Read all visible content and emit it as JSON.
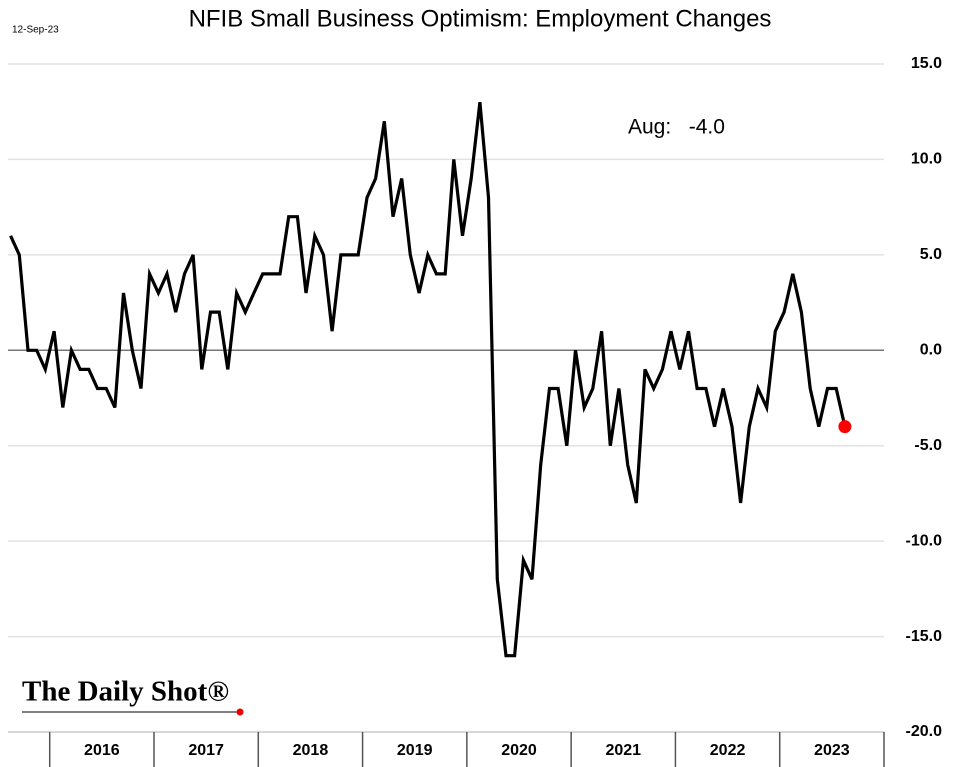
{
  "chart_data": {
    "type": "line",
    "title": "NFIB Small Business Optimism: Employment Changes",
    "date": "12-Sep-23",
    "annotation": "Aug:   -4.0",
    "source": "The Daily Shot®",
    "color": "#000000",
    "highlight_color": "#ff0000",
    "grid": true,
    "x": [
      2015.625,
      2015.708,
      2015.792,
      2015.875,
      2015.958,
      2016.042,
      2016.125,
      2016.208,
      2016.292,
      2016.375,
      2016.458,
      2016.542,
      2016.625,
      2016.708,
      2016.792,
      2016.875,
      2016.958,
      2017.042,
      2017.125,
      2017.208,
      2017.292,
      2017.375,
      2017.458,
      2017.542,
      2017.625,
      2017.708,
      2017.792,
      2017.875,
      2017.958,
      2018.042,
      2018.125,
      2018.208,
      2018.292,
      2018.375,
      2018.458,
      2018.542,
      2018.625,
      2018.708,
      2018.792,
      2018.875,
      2018.958,
      2019.042,
      2019.125,
      2019.208,
      2019.292,
      2019.375,
      2019.458,
      2019.542,
      2019.625,
      2019.708,
      2019.792,
      2019.875,
      2019.958,
      2020.042,
      2020.125,
      2020.208,
      2020.292,
      2020.375,
      2020.458,
      2020.542,
      2020.625,
      2020.708,
      2020.792,
      2020.875,
      2020.958,
      2021.042,
      2021.125,
      2021.208,
      2021.292,
      2021.375,
      2021.458,
      2021.542,
      2021.625,
      2021.708,
      2021.792,
      2021.875,
      2021.958,
      2022.042,
      2022.125,
      2022.208,
      2022.292,
      2022.375,
      2022.458,
      2022.542,
      2022.625,
      2022.708,
      2022.792,
      2022.875,
      2022.958,
      2023.042,
      2023.125,
      2023.208,
      2023.292,
      2023.375,
      2023.458,
      2023.542,
      2023.625
    ],
    "values": [
      6,
      5,
      0,
      0,
      -1,
      1,
      -3,
      0,
      -1,
      -1,
      -2,
      -2,
      -3,
      3,
      0,
      -2,
      4,
      3,
      4,
      2,
      4,
      5,
      -1,
      2,
      2,
      -1,
      3,
      2,
      3,
      4,
      4,
      4,
      7,
      7,
      3,
      6,
      5,
      1,
      5,
      5,
      5,
      8,
      9,
      12,
      7,
      9,
      5,
      3,
      5,
      4,
      4,
      10,
      6,
      9,
      13,
      8,
      -12,
      -16,
      -16,
      -11,
      -12,
      -6,
      -2,
      -2,
      -5,
      0,
      -3,
      -2,
      1,
      -5,
      -2,
      -6,
      -8,
      -1,
      -2,
      -1,
      1,
      -1,
      1,
      -2,
      -2,
      -4,
      -2,
      -4,
      -8,
      -4,
      -2,
      -3,
      1,
      2,
      4,
      2,
      -2,
      -4,
      -2,
      -2,
      -4
    ],
    "xlim": [
      2015.6,
      2024.0
    ],
    "xticks": [
      2016,
      2017,
      2018,
      2019,
      2020,
      2021,
      2022,
      2023
    ],
    "ylim": [
      -20,
      15
    ],
    "yticks": [
      {
        "value": 15,
        "label": "15.0"
      },
      {
        "value": 10,
        "label": "10.0"
      },
      {
        "value": 5,
        "label": "5.0"
      },
      {
        "value": 0,
        "label": "0.0"
      },
      {
        "value": -5,
        "label": "-5.0"
      },
      {
        "value": -10,
        "label": "-10.0"
      },
      {
        "value": -15,
        "label": "-15.0"
      },
      {
        "value": -20,
        "label": "-20.0"
      }
    ]
  }
}
